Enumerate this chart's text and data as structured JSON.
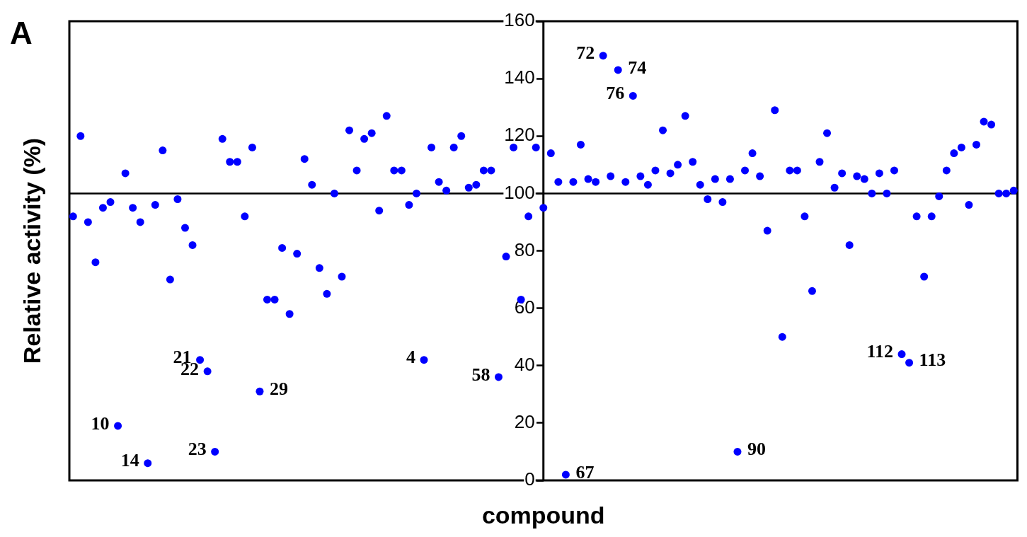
{
  "chart_data": {
    "type": "scatter",
    "xlabel": "compound",
    "ylabel": "Relative activity (%)",
    "annotations": [
      "A",
      "10",
      "14",
      "21",
      "22",
      "23",
      "29",
      "4",
      "58",
      "67",
      "72",
      "74",
      "76",
      "90",
      "112",
      "113"
    ],
    "categories": [
      null,
      null,
      null,
      null,
      null,
      null,
      null,
      null,
      null,
      null,
      null,
      null,
      null,
      null,
      null,
      null,
      null,
      null,
      null,
      null,
      null,
      null,
      null,
      null,
      null,
      null,
      null,
      null,
      null,
      null,
      null,
      null,
      null,
      null,
      null,
      null,
      null,
      null,
      null,
      null,
      null,
      null,
      null,
      null,
      null,
      null,
      null,
      null,
      null,
      null,
      null,
      null,
      null,
      null,
      null,
      null,
      null,
      null,
      null,
      null,
      null,
      null,
      null,
      null,
      null,
      null,
      null,
      null,
      null,
      null,
      null,
      null,
      null,
      null,
      null,
      null,
      null,
      null,
      null,
      null,
      null,
      null,
      null,
      null,
      null,
      null,
      null,
      null,
      null,
      null,
      null,
      null,
      null,
      null,
      null,
      null,
      null,
      null,
      null,
      null,
      null,
      null,
      null,
      null,
      null,
      null,
      null,
      null,
      null,
      null,
      null,
      null,
      null,
      null,
      null,
      null,
      null,
      null,
      null,
      null,
      null,
      null,
      null,
      null,
      null,
      null,
      null
    ],
    "ylim": [
      0,
      160
    ],
    "yticks": [
      0,
      20,
      40,
      60,
      80,
      100,
      120,
      140,
      160
    ],
    "tick_labels": "y",
    "grid": false,
    "legend": false,
    "marker": "circle",
    "ref_lines": [
      {
        "axis": "y",
        "value": 100,
        "color": "#000000"
      }
    ],
    "series": [
      {
        "color": "#0000ff",
        "values": [
          92,
          120,
          90,
          76,
          95,
          97,
          19,
          107,
          95,
          90,
          6,
          96,
          115,
          70,
          98,
          88,
          82,
          42,
          38,
          10,
          119,
          111,
          111,
          92,
          116,
          31,
          63,
          63,
          81,
          58,
          79,
          112,
          103,
          74,
          65,
          100,
          71,
          122,
          108,
          119,
          121,
          94,
          127,
          108,
          108,
          96,
          100,
          42,
          116,
          104,
          101,
          116,
          120,
          102,
          103,
          108,
          108,
          36,
          78,
          116,
          63,
          92,
          116,
          95,
          114,
          104,
          2,
          104,
          117,
          105,
          104,
          148,
          106,
          143,
          104,
          134,
          106,
          103,
          108,
          122,
          107,
          110,
          127,
          111,
          103,
          98,
          105,
          97,
          105,
          10,
          108,
          114,
          106,
          87,
          129,
          50,
          108,
          108,
          92,
          66,
          111,
          121,
          102,
          107,
          82,
          106,
          105,
          100,
          107,
          100,
          108,
          44,
          41,
          92,
          71,
          92,
          99,
          108,
          114,
          116,
          96,
          117,
          125,
          124,
          100,
          100,
          101
        ]
      }
    ]
  }
}
